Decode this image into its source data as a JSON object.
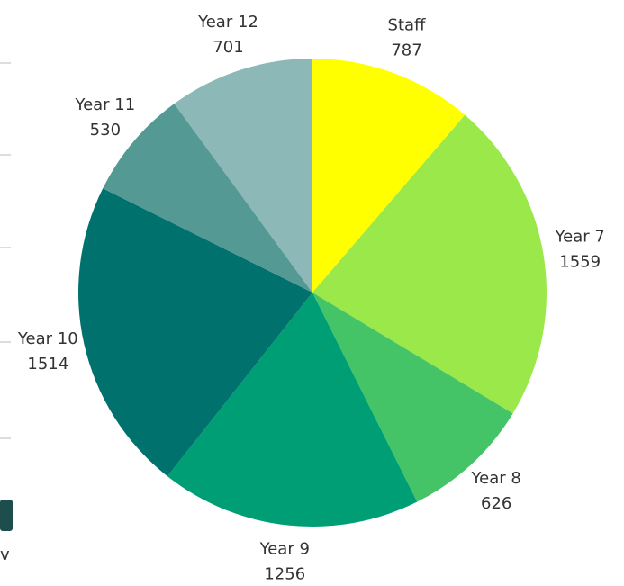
{
  "chart_data": {
    "type": "pie",
    "categories": [
      "Staff",
      "Year 7",
      "Year 8",
      "Year 9",
      "Year 10",
      "Year 11",
      "Year 12"
    ],
    "values": [
      787,
      1559,
      626,
      1256,
      1514,
      530,
      701
    ],
    "colors": [
      "#ffff00",
      "#9be84a",
      "#44c467",
      "#009e74",
      "#00716d",
      "#549994",
      "#8cb8b8"
    ]
  },
  "fragment": "v"
}
